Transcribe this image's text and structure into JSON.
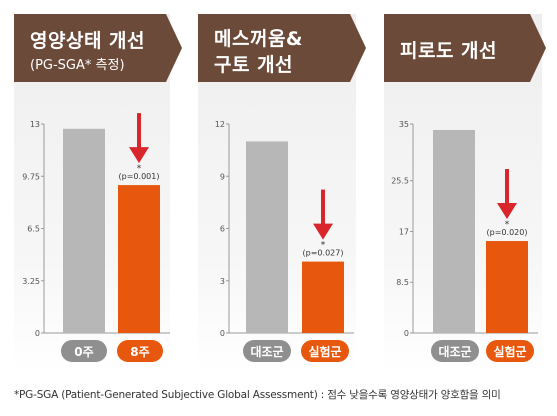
{
  "chart_data": [
    {
      "type": "bar",
      "title": "영양상태 개선",
      "subtitle": "(PG-SGA* 측정)",
      "categories": [
        "0주",
        "8주"
      ],
      "values": [
        12.7,
        9.2
      ],
      "yticks": [
        "0",
        "3.25",
        "6.5",
        "9.75",
        "13"
      ],
      "ylim": [
        0,
        13
      ],
      "annotation": "(p=0.001)",
      "bar_colors": [
        "#b7b7b7",
        "#e8570e"
      ]
    },
    {
      "type": "bar",
      "title": "메스꺼움&",
      "subtitle": "구토 개선",
      "categories": [
        "대조군",
        "실험군"
      ],
      "values": [
        11.0,
        4.1
      ],
      "yticks": [
        "0",
        "3",
        "6",
        "9",
        "12"
      ],
      "ylim": [
        0,
        12
      ],
      "annotation": "(p=0.027)",
      "bar_colors": [
        "#b7b7b7",
        "#e8570e"
      ]
    },
    {
      "type": "bar",
      "title": "피로도 개선",
      "subtitle": "",
      "categories": [
        "대조군",
        "실험군"
      ],
      "values": [
        34.0,
        15.4
      ],
      "yticks": [
        "0",
        "8.5",
        "17",
        "25.5",
        "35"
      ],
      "ylim": [
        0,
        35
      ],
      "annotation": "(p=0.020)",
      "bar_colors": [
        "#b7b7b7",
        "#e8570e"
      ]
    }
  ],
  "asterisk": "*",
  "footnote": "*PG-SGA (Patient-Generated Subjective Global Assessment) : 점수 낮을수록 영양상태가 양호함을 의미",
  "colors": {
    "banner": "#6b4a3a",
    "arrow": "#d9262c",
    "pill_gray": "#8f8f8f",
    "pill_orange": "#e8570e"
  }
}
